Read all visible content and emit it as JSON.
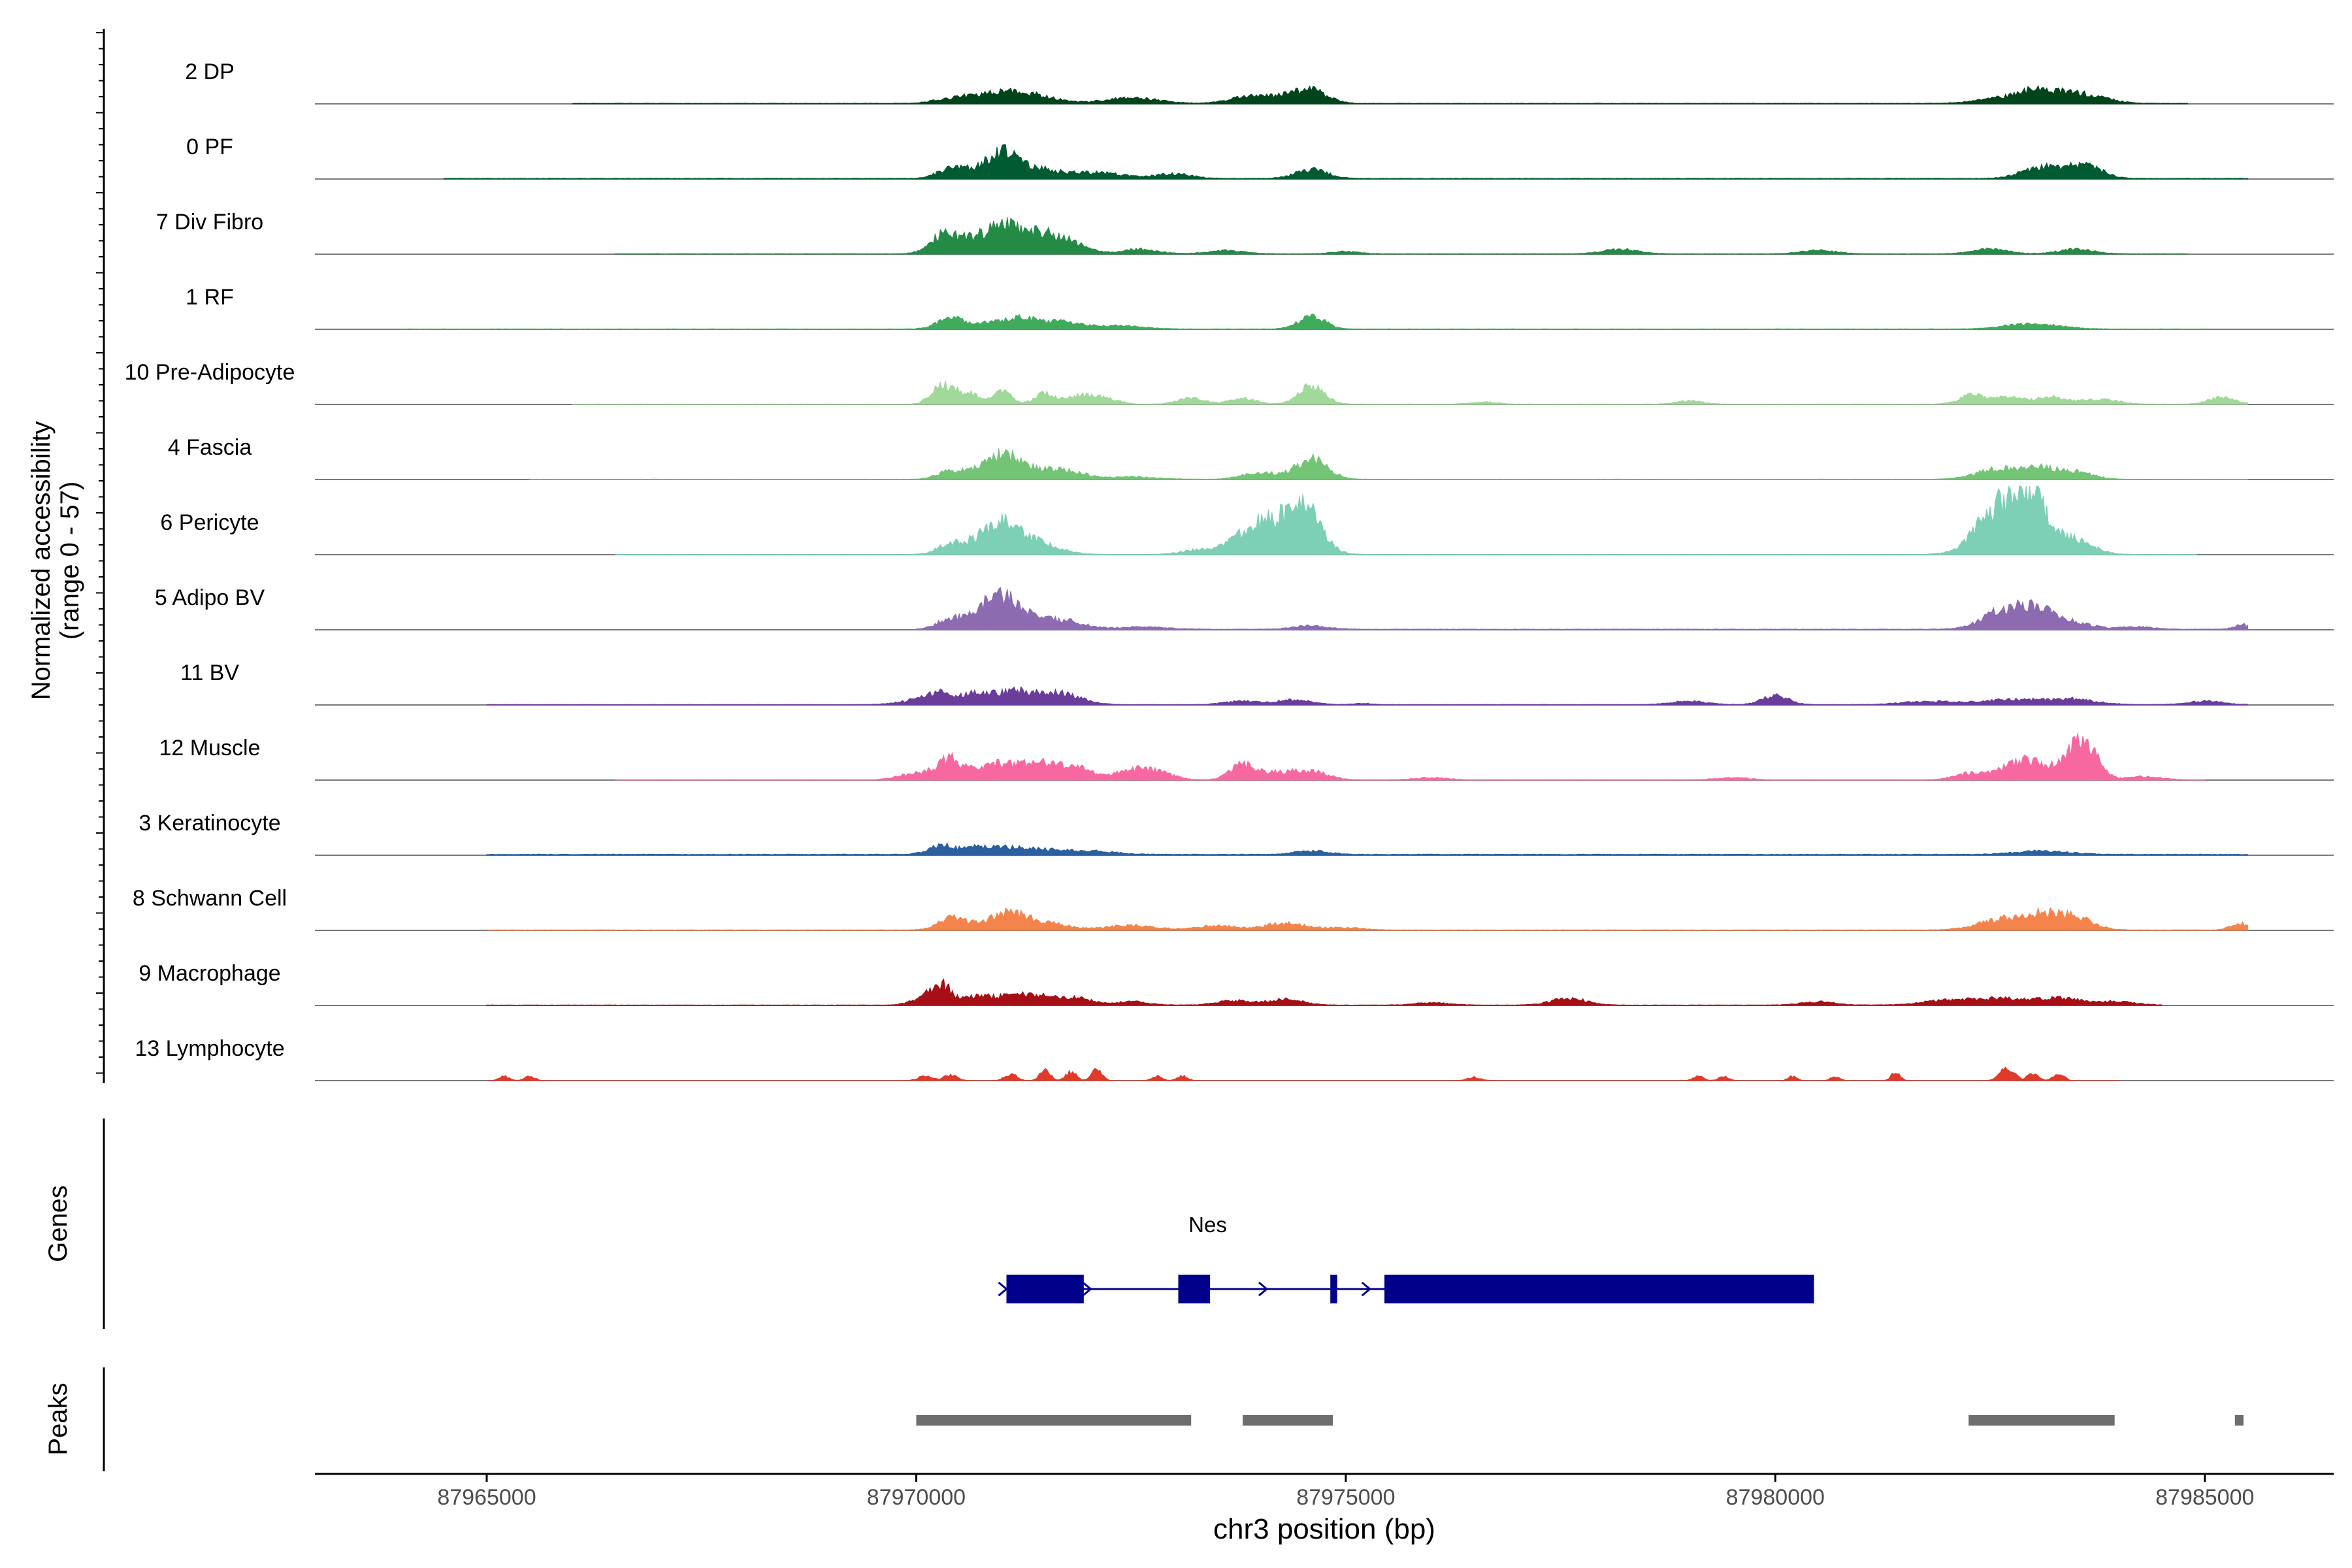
{
  "chart_data": {
    "type": "area",
    "chromosome": "chr3",
    "xlim": [
      87963000,
      87986500
    ],
    "x_ticks": [
      "87965000",
      "87970000",
      "87975000",
      "87980000",
      "87985000"
    ],
    "xlabel": "chr3 position (bp)",
    "ylabel_line1": "Normalized accessibility",
    "ylabel_line2": "(range 0 - 57)",
    "ylim": [
      0,
      57
    ],
    "genes_label": "Genes",
    "peaks_label": "Peaks",
    "tracks": [
      {
        "name": "2 DP",
        "color": "#00441b",
        "range": [
          87966000,
          87984800
        ],
        "base": 0.5,
        "bumps": [
          [
            87970300,
            3,
            150
          ],
          [
            87970600,
            5,
            150
          ],
          [
            87971000,
            10,
            220
          ],
          [
            87971400,
            6,
            250
          ],
          [
            87972500,
            5,
            300
          ],
          [
            87973800,
            4,
            200
          ],
          [
            87974200,
            6,
            250
          ],
          [
            87974600,
            11,
            180
          ],
          [
            87982700,
            5,
            300
          ],
          [
            87983100,
            10,
            220
          ],
          [
            87983600,
            8,
            250
          ]
        ]
      },
      {
        "name": "0 PF",
        "color": "#005a32",
        "range": [
          87964500,
          87985500
        ],
        "base": 0.6,
        "bumps": [
          [
            87970400,
            8,
            150
          ],
          [
            87970700,
            5,
            200
          ],
          [
            87971000,
            20,
            180
          ],
          [
            87971400,
            8,
            250
          ],
          [
            87972100,
            5,
            300
          ],
          [
            87973000,
            4,
            200
          ],
          [
            87974600,
            8,
            180
          ],
          [
            87983100,
            10,
            220
          ],
          [
            87983600,
            11,
            200
          ]
        ]
      },
      {
        "name": "7 Div Fibro",
        "color": "#238b45",
        "range": [
          87966500,
          87984800
        ],
        "base": 0.4,
        "bumps": [
          [
            87970300,
            14,
            150
          ],
          [
            87970600,
            10,
            200
          ],
          [
            87971000,
            22,
            200
          ],
          [
            87971400,
            13,
            250
          ],
          [
            87971700,
            9,
            250
          ],
          [
            87972600,
            4,
            200
          ],
          [
            87973600,
            3,
            200
          ],
          [
            87975000,
            2,
            150
          ],
          [
            87978200,
            4,
            200
          ],
          [
            87980500,
            3,
            200
          ],
          [
            87982500,
            4,
            200
          ],
          [
            87983500,
            4,
            200
          ]
        ]
      },
      {
        "name": "1 RF",
        "color": "#41ab5d",
        "range": [
          87964000,
          87985000
        ],
        "base": 0.3,
        "bumps": [
          [
            87970400,
            10,
            150
          ],
          [
            87970800,
            4,
            150
          ],
          [
            87971200,
            10,
            200
          ],
          [
            87971700,
            6,
            200
          ],
          [
            87972300,
            3,
            300
          ],
          [
            87974600,
            12,
            150
          ],
          [
            87983000,
            5,
            300
          ]
        ]
      },
      {
        "name": "10 Pre-Adipocyte",
        "color": "#a1d99b",
        "range": [
          87966000,
          87985500
        ],
        "base": 0.3,
        "bumps": [
          [
            87970300,
            18,
            120
          ],
          [
            87970600,
            10,
            120
          ],
          [
            87971000,
            12,
            100
          ],
          [
            87971500,
            9,
            120
          ],
          [
            87971900,
            7,
            150
          ],
          [
            87972200,
            5,
            150
          ],
          [
            87973200,
            6,
            150
          ],
          [
            87973800,
            5,
            150
          ],
          [
            87974600,
            16,
            150
          ],
          [
            87976600,
            2,
            150
          ],
          [
            87979000,
            3,
            150
          ],
          [
            87982300,
            8,
            150
          ],
          [
            87982700,
            6,
            150
          ],
          [
            87983200,
            6,
            200
          ],
          [
            87983800,
            4,
            200
          ],
          [
            87985200,
            6,
            150
          ]
        ]
      },
      {
        "name": "4 Fascia",
        "color": "#74c476",
        "range": [
          87965500,
          87985500
        ],
        "base": 0.3,
        "bumps": [
          [
            87970400,
            7,
            150
          ],
          [
            87970700,
            5,
            150
          ],
          [
            87971000,
            20,
            180
          ],
          [
            87971400,
            8,
            250
          ],
          [
            87971800,
            5,
            200
          ],
          [
            87972500,
            2,
            300
          ],
          [
            87974000,
            6,
            200
          ],
          [
            87974600,
            18,
            180
          ],
          [
            87982600,
            9,
            250
          ],
          [
            87983100,
            9,
            200
          ],
          [
            87983500,
            6,
            200
          ]
        ]
      },
      {
        "name": "6 Pericyte",
        "color": "#7dcfb6",
        "range": [
          87966500,
          87984900
        ],
        "base": 0.3,
        "bumps": [
          [
            87970400,
            9,
            150
          ],
          [
            87970700,
            7,
            150
          ],
          [
            87971000,
            25,
            200
          ],
          [
            87971400,
            10,
            250
          ],
          [
            87973300,
            4,
            200
          ],
          [
            87974000,
            28,
            250
          ],
          [
            87974500,
            42,
            200
          ],
          [
            87982600,
            42,
            250
          ],
          [
            87983000,
            45,
            200
          ],
          [
            87983500,
            12,
            200
          ]
        ]
      },
      {
        "name": "5 Adipo BV",
        "color": "#8c6bb1",
        "range": [
          87970000,
          87985500
        ],
        "base": 0.6,
        "bumps": [
          [
            87970400,
            9,
            150
          ],
          [
            87970700,
            7,
            150
          ],
          [
            87971000,
            28,
            200
          ],
          [
            87971400,
            8,
            250
          ],
          [
            87971800,
            5,
            200
          ],
          [
            87972600,
            2,
            300
          ],
          [
            87974600,
            3,
            200
          ],
          [
            87982700,
            18,
            250
          ],
          [
            87983100,
            13,
            200
          ],
          [
            87983500,
            5,
            200
          ],
          [
            87984200,
            2,
            200
          ],
          [
            87985450,
            4,
            100
          ]
        ]
      },
      {
        "name": "11 BV",
        "color": "#6a3d9a",
        "range": [
          87965000,
          87985500
        ],
        "base": 0.4,
        "bumps": [
          [
            87970000,
            4,
            200
          ],
          [
            87970300,
            10,
            150
          ],
          [
            87970700,
            9,
            150
          ],
          [
            87971100,
            11,
            200
          ],
          [
            87971500,
            8,
            200
          ],
          [
            87971800,
            6,
            200
          ],
          [
            87973800,
            3,
            200
          ],
          [
            87974400,
            4,
            200
          ],
          [
            87975200,
            1,
            100
          ],
          [
            87979000,
            3,
            200
          ],
          [
            87980000,
            8,
            150
          ],
          [
            87981800,
            3,
            300
          ],
          [
            87982700,
            4,
            300
          ],
          [
            87983400,
            5,
            300
          ],
          [
            87985000,
            3,
            200
          ]
        ]
      },
      {
        "name": "12 Muscle",
        "color": "#f768a1",
        "range": [
          87966500,
          87985000
        ],
        "base": 0.2,
        "bumps": [
          [
            87970000,
            6,
            200
          ],
          [
            87970400,
            18,
            150
          ],
          [
            87970800,
            8,
            150
          ],
          [
            87971100,
            12,
            200
          ],
          [
            87971500,
            14,
            200
          ],
          [
            87971900,
            10,
            150
          ],
          [
            87972500,
            8,
            200
          ],
          [
            87972800,
            6,
            200
          ],
          [
            87973800,
            13,
            150
          ],
          [
            87974200,
            6,
            200
          ],
          [
            87974600,
            7,
            200
          ],
          [
            87976000,
            2,
            200
          ],
          [
            87979500,
            2,
            200
          ],
          [
            87982300,
            6,
            200
          ],
          [
            87982800,
            12,
            200
          ],
          [
            87983000,
            8,
            150
          ],
          [
            87983400,
            12,
            200
          ],
          [
            87983600,
            28,
            150
          ],
          [
            87984300,
            3,
            200
          ]
        ]
      },
      {
        "name": "3 Keratinocyte",
        "color": "#2b5f9e",
        "range": [
          87965000,
          87985500
        ],
        "base": 0.8,
        "bumps": [
          [
            87970300,
            8,
            150
          ],
          [
            87970700,
            5,
            150
          ],
          [
            87971000,
            5,
            200
          ],
          [
            87971400,
            4,
            250
          ],
          [
            87972000,
            3,
            300
          ],
          [
            87974600,
            3,
            200
          ],
          [
            87983100,
            3,
            300
          ]
        ]
      },
      {
        "name": "8 Schwann Cell",
        "color": "#f4844c",
        "range": [
          87965000,
          87985500
        ],
        "base": 0.4,
        "bumps": [
          [
            87970400,
            10,
            150
          ],
          [
            87970800,
            5,
            200
          ],
          [
            87971100,
            12,
            200
          ],
          [
            87971500,
            6,
            250
          ],
          [
            87972500,
            4,
            300
          ],
          [
            87973500,
            4,
            200
          ],
          [
            87974300,
            6,
            250
          ],
          [
            87975000,
            2,
            200
          ],
          [
            87982600,
            9,
            250
          ],
          [
            87983100,
            13,
            220
          ],
          [
            87983500,
            10,
            200
          ],
          [
            87985400,
            6,
            100
          ]
        ]
      },
      {
        "name": "9 Macrophage",
        "color": "#a50f15",
        "range": [
          87965000,
          87984500
        ],
        "base": 0.4,
        "bumps": [
          [
            87970100,
            6,
            150
          ],
          [
            87970300,
            16,
            120
          ],
          [
            87970700,
            7,
            150
          ],
          [
            87971100,
            8,
            200
          ],
          [
            87971500,
            7,
            200
          ],
          [
            87971900,
            6,
            150
          ],
          [
            87972500,
            3,
            200
          ],
          [
            87973700,
            4,
            200
          ],
          [
            87974300,
            5,
            200
          ],
          [
            87976000,
            2,
            200
          ],
          [
            87977600,
            6,
            200
          ],
          [
            87980500,
            3,
            200
          ],
          [
            87982000,
            4,
            300
          ],
          [
            87982600,
            5,
            300
          ],
          [
            87983300,
            6,
            300
          ],
          [
            87984000,
            3,
            200
          ]
        ]
      },
      {
        "name": "13 Lymphocyte",
        "color": "#e03a2b",
        "range": [
          87965000,
          87984000
        ],
        "base": 0,
        "bumps": [
          [
            87965200,
            4,
            60
          ],
          [
            87965500,
            4,
            60
          ],
          [
            87970100,
            4,
            80
          ],
          [
            87970400,
            5,
            80
          ],
          [
            87971100,
            6,
            70
          ],
          [
            87971500,
            9,
            60
          ],
          [
            87971800,
            8,
            60
          ],
          [
            87972100,
            10,
            60
          ],
          [
            87972800,
            4,
            60
          ],
          [
            87973100,
            4,
            60
          ],
          [
            87976500,
            3,
            80
          ],
          [
            87979100,
            4,
            60
          ],
          [
            87979400,
            4,
            60
          ],
          [
            87980200,
            4,
            50
          ],
          [
            87980700,
            4,
            50
          ],
          [
            87981400,
            8,
            50
          ],
          [
            87982700,
            12,
            80
          ],
          [
            87983000,
            7,
            60
          ],
          [
            87983300,
            7,
            60
          ]
        ]
      }
    ],
    "genes": [
      {
        "name": "Nes",
        "start": 87971050,
        "end": 87980450,
        "exons": [
          [
            87971050,
            87971950
          ],
          [
            87973050,
            87973420
          ],
          [
            87974820,
            87974900
          ],
          [
            87975450,
            87980450
          ]
        ],
        "strand_arrows": [
          87972000,
          87974050,
          87975250
        ]
      }
    ],
    "peaks": [
      [
        87970000,
        87973200
      ],
      [
        87973800,
        87974850
      ],
      [
        87982250,
        87983950
      ],
      [
        87985350,
        87985450
      ]
    ],
    "colors": {
      "axis": "#000000",
      "baseline": "#7a7a7a",
      "gene": "#00008b",
      "peak": "#6e6e6e"
    }
  }
}
